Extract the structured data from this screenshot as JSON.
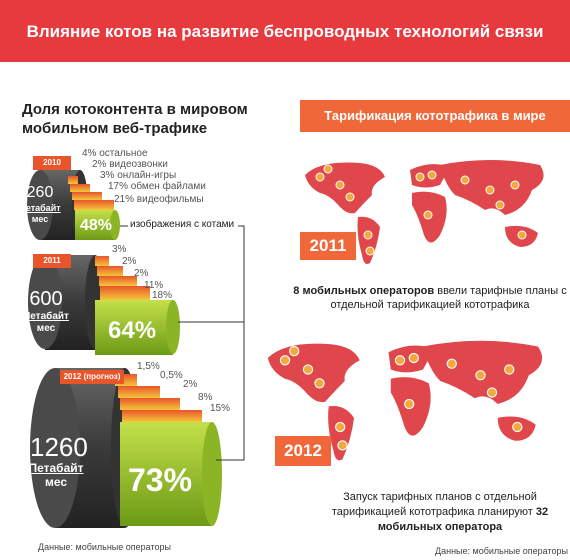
{
  "header": {
    "title": "Влияние котов на развитие беспроводных технологий связи"
  },
  "left": {
    "heading": "Доля котоконтента в мировом мобильном веб-трафике",
    "cat_label": "изображения с котами",
    "blocks": [
      {
        "year": "2010",
        "volume": "260",
        "unit": "Петабайт",
        "per": "мес",
        "main": "48%",
        "segments": [
          "4% остальное",
          "2% видеозвонки",
          "3% онлайн-игры",
          "17% обмен файлами",
          "21% видеофильмы"
        ]
      },
      {
        "year": "2011",
        "volume": "600",
        "unit": "Петабайт",
        "per": "мес",
        "main": "64%",
        "segments": [
          "3%",
          "2%",
          "2%",
          "11%",
          "18%"
        ]
      },
      {
        "year": "2012 (прогноз)",
        "volume": "1260",
        "unit": "Петабайт",
        "per": "мес",
        "main": "73%",
        "segments": [
          "1,5%",
          "0,5%",
          "2%",
          "8%",
          "15%"
        ]
      }
    ],
    "source": "Данные: мобильные операторы"
  },
  "right": {
    "heading": "Тарификация кототрафика в  мире",
    "maps": [
      {
        "year": "2011",
        "bold": "8 мобильных операторов",
        "rest": " ввели тарифные планы с отдельной тарификацией кототрафика"
      },
      {
        "year": "2012",
        "rest": "Запуск тарифных планов с отдельной тарификацией кототрафика планируют ",
        "bold": "32 мобильных оператора"
      }
    ],
    "source": "Данные: мобильные операторы"
  }
}
